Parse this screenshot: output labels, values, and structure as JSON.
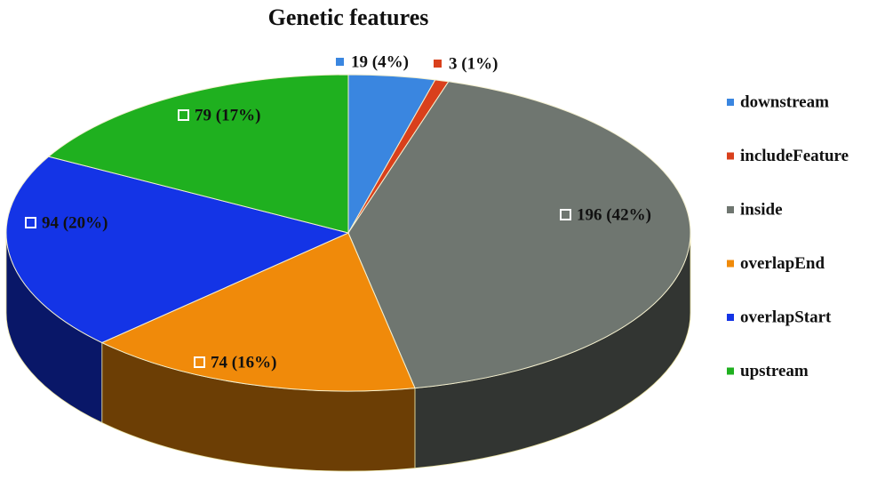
{
  "chart_data": {
    "type": "pie",
    "title": "Genetic features",
    "categories": [
      "downstream",
      "includeFeature",
      "inside",
      "overlapEnd",
      "overlapStart",
      "upstream"
    ],
    "values": [
      19,
      3,
      196,
      74,
      94,
      79
    ],
    "value_labels": [
      "19 (4%)",
      "3 (1%)",
      "196 (42%)",
      "74 (16%)",
      "94 (20%)",
      "79 (17%)"
    ],
    "colors": [
      "#3a86e0",
      "#d9401c",
      "#6f7670",
      "#f08a0a",
      "#1434e6",
      "#1fb01f"
    ],
    "legend": "right"
  }
}
